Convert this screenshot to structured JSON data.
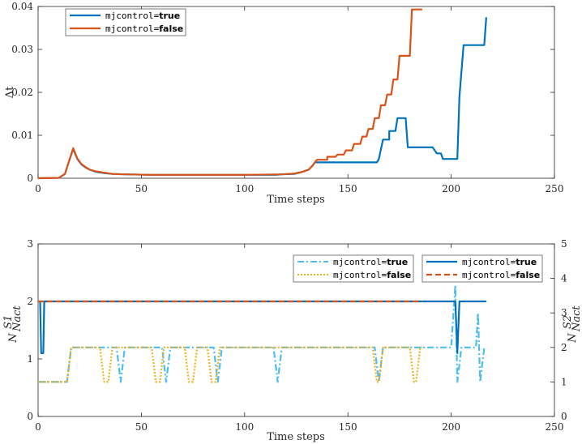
{
  "chart_data": [
    {
      "type": "line",
      "title": "",
      "xlabel": "Time steps",
      "ylabel": "Δt",
      "xlim": [
        0,
        250
      ],
      "ylim": [
        0,
        0.04
      ],
      "xticks": [
        "0",
        "50",
        "100",
        "150",
        "200",
        "250"
      ],
      "yticks": [
        "0",
        "0.01",
        "0.02",
        "0.03",
        "0.04"
      ],
      "grid": false,
      "legend_position": "top-left",
      "series": [
        {
          "legend_mono": "mjcontrol=",
          "legend_bold": "true",
          "color": "#0072BD",
          "style": "solid",
          "points": [
            [
              0,
              0
            ],
            [
              10,
              0.0001
            ],
            [
              13,
              0.001
            ],
            [
              15,
              0.004
            ],
            [
              17,
              0.0068
            ],
            [
              19,
              0.0045
            ],
            [
              21,
              0.0032
            ],
            [
              23,
              0.0025
            ],
            [
              25,
              0.002
            ],
            [
              28,
              0.0015
            ],
            [
              32,
              0.0012
            ],
            [
              36,
              0.001
            ],
            [
              42,
              0.0009
            ],
            [
              55,
              0.0008
            ],
            [
              100,
              0.0008
            ],
            [
              115,
              0.0008
            ],
            [
              118,
              0.0009
            ],
            [
              124,
              0.001
            ],
            [
              128,
              0.0015
            ],
            [
              131,
              0.002
            ],
            [
              133,
              0.003
            ],
            [
              134,
              0.0037
            ],
            [
              160,
              0.0037
            ],
            [
              164,
              0.0037
            ],
            [
              165,
              0.0045
            ],
            [
              167,
              0.009
            ],
            [
              170,
              0.009
            ],
            [
              170,
              0.011
            ],
            [
              173,
              0.011
            ],
            [
              174,
              0.014
            ],
            [
              178,
              0.014
            ],
            [
              179,
              0.0072
            ],
            [
              191,
              0.0072
            ],
            [
              193,
              0.0058
            ],
            [
              195,
              0.0058
            ],
            [
              196,
              0.0045
            ],
            [
              199,
              0.0045
            ],
            [
              201,
              0.0045
            ],
            [
              203,
              0.0045
            ],
            [
              204,
              0.019
            ],
            [
              206,
              0.031
            ],
            [
              216,
              0.031
            ],
            [
              217,
              0.0375
            ]
          ]
        },
        {
          "legend_mono": "mjcontrol=",
          "legend_bold": "false",
          "color": "#D95319",
          "style": "solid",
          "points": [
            [
              0,
              0
            ],
            [
              10,
              0.0001
            ],
            [
              13,
              0.001
            ],
            [
              15,
              0.004
            ],
            [
              17,
              0.007
            ],
            [
              19,
              0.0046
            ],
            [
              21,
              0.0033
            ],
            [
              23,
              0.0026
            ],
            [
              25,
              0.002
            ],
            [
              28,
              0.0016
            ],
            [
              32,
              0.0013
            ],
            [
              36,
              0.001
            ],
            [
              42,
              0.0009
            ],
            [
              55,
              0.0008
            ],
            [
              100,
              0.0008
            ],
            [
              118,
              0.0009
            ],
            [
              124,
              0.0011
            ],
            [
              128,
              0.0015
            ],
            [
              131,
              0.002
            ],
            [
              133,
              0.003
            ],
            [
              135,
              0.0043
            ],
            [
              140,
              0.0043
            ],
            [
              140,
              0.005
            ],
            [
              144,
              0.005
            ],
            [
              145,
              0.0055
            ],
            [
              148,
              0.0055
            ],
            [
              149,
              0.0065
            ],
            [
              152,
              0.0065
            ],
            [
              153,
              0.008
            ],
            [
              156,
              0.008
            ],
            [
              157,
              0.0097
            ],
            [
              159,
              0.0097
            ],
            [
              160,
              0.0115
            ],
            [
              162,
              0.0115
            ],
            [
              163,
              0.014
            ],
            [
              165,
              0.014
            ],
            [
              166,
              0.017
            ],
            [
              168,
              0.017
            ],
            [
              169,
              0.0195
            ],
            [
              171,
              0.0195
            ],
            [
              172,
              0.023
            ],
            [
              174,
              0.023
            ],
            [
              175,
              0.0285
            ],
            [
              176,
              0.0285
            ],
            [
              177,
              0.0285
            ],
            [
              180,
              0.0285
            ],
            [
              181,
              0.0393
            ],
            [
              186,
              0.0393
            ]
          ]
        }
      ]
    },
    {
      "type": "line",
      "title": "",
      "xlabel": "Time steps",
      "ylabel_left": "N^{S1}_{Nact}",
      "ylabel_right": "N^{S2}_{Nact}",
      "xlim": [
        0,
        250
      ],
      "ylim_left": [
        0,
        3
      ],
      "ylim_right": [
        0,
        5
      ],
      "xticks": [
        "0",
        "50",
        "100",
        "150",
        "200",
        "250"
      ],
      "yticks_left": [
        "0",
        "1",
        "2",
        "3"
      ],
      "yticks_right": [
        "0",
        "1",
        "2",
        "3",
        "4",
        "5"
      ],
      "grid": false,
      "legend_position": "top-right",
      "series": [
        {
          "legend_mono": "mjcontrol=",
          "legend_bold": "true",
          "axis": "right",
          "color": "#4DBEEE",
          "style": "dashdot",
          "points": [
            [
              0,
              1
            ],
            [
              14,
              1
            ],
            [
              16,
              2
            ],
            [
              38,
              2
            ],
            [
              40,
              1
            ],
            [
              42,
              2
            ],
            [
              60,
              2
            ],
            [
              62,
              1
            ],
            [
              64,
              2
            ],
            [
              85,
              2
            ],
            [
              87,
              1
            ],
            [
              89,
              2
            ],
            [
              114,
              2
            ],
            [
              116,
              1
            ],
            [
              118,
              2
            ],
            [
              163,
              2
            ],
            [
              165,
              1
            ],
            [
              167,
              2
            ],
            [
              200,
              2
            ],
            [
              202,
              3.8
            ],
            [
              203,
              1
            ],
            [
              205,
              2
            ],
            [
              212,
              2
            ],
            [
              213,
              3
            ],
            [
              214,
              1
            ],
            [
              216,
              2
            ]
          ]
        },
        {
          "legend_mono": "mjcontrol=",
          "legend_bold": "false",
          "axis": "right",
          "color": "#EDB120",
          "style": "dotted",
          "points": [
            [
              0,
              1
            ],
            [
              14,
              1
            ],
            [
              15,
              1.5
            ],
            [
              16,
              2
            ],
            [
              30,
              2
            ],
            [
              32,
              1
            ],
            [
              34,
              1
            ],
            [
              36,
              2
            ],
            [
              55,
              2
            ],
            [
              57,
              1
            ],
            [
              59,
              1
            ],
            [
              61,
              2
            ],
            [
              71,
              2
            ],
            [
              73,
              1
            ],
            [
              75,
              1
            ],
            [
              77,
              2
            ],
            [
              82,
              2
            ],
            [
              84,
              1
            ],
            [
              86,
              1
            ],
            [
              88,
              2
            ],
            [
              162,
              2
            ],
            [
              164,
              1
            ],
            [
              165,
              1
            ],
            [
              167,
              2
            ],
            [
              180,
              2
            ],
            [
              182,
              1
            ],
            [
              183,
              1
            ],
            [
              185,
              2
            ],
            [
              186,
              2
            ]
          ]
        },
        {
          "legend_mono": "mjcontrol=",
          "legend_bold": "true",
          "axis": "left",
          "color": "#0072BD",
          "style": "solid",
          "points": [
            [
              0,
              2
            ],
            [
              1,
              2
            ],
            [
              1.5,
              1.1
            ],
            [
              2,
              1.1
            ],
            [
              2.5,
              1.1
            ],
            [
              3,
              2
            ],
            [
              201,
              2
            ],
            [
              202,
              2
            ],
            [
              203,
              1.1
            ],
            [
              204,
              2
            ],
            [
              217,
              2
            ]
          ]
        },
        {
          "legend_mono": "mjcontrol=",
          "legend_bold": "false",
          "axis": "left",
          "color": "#D95319",
          "style": "dashed",
          "points": [
            [
              0,
              2
            ],
            [
              186,
              2
            ]
          ]
        }
      ]
    }
  ]
}
